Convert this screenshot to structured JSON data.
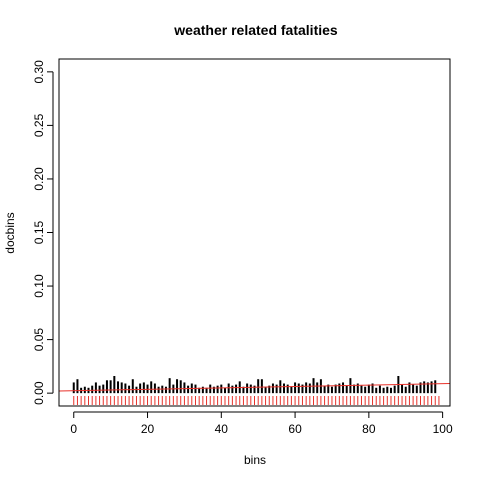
{
  "chart_data": {
    "type": "bar",
    "title": "weather related fatalities",
    "xlabel": "bins",
    "ylabel": "docbins",
    "xlim": [
      -4,
      102
    ],
    "ylim": [
      -0.012,
      0.312
    ],
    "xticks": [
      0,
      20,
      40,
      60,
      80,
      100
    ],
    "yticks": [
      0.0,
      0.05,
      0.1,
      0.15,
      0.2,
      0.25,
      0.3
    ],
    "xtick_labels": [
      "0",
      "20",
      "40",
      "60",
      "80",
      "100"
    ],
    "ytick_labels": [
      "0.00",
      "0.05",
      "0.10",
      "0.15",
      "0.20",
      "0.25",
      "0.30"
    ],
    "x": [
      0,
      1,
      2,
      3,
      4,
      5,
      6,
      7,
      8,
      9,
      10,
      11,
      12,
      13,
      14,
      15,
      16,
      17,
      18,
      19,
      20,
      21,
      22,
      23,
      24,
      25,
      26,
      27,
      28,
      29,
      30,
      31,
      32,
      33,
      34,
      35,
      36,
      37,
      38,
      39,
      40,
      41,
      42,
      43,
      44,
      45,
      46,
      47,
      48,
      49,
      50,
      51,
      52,
      53,
      54,
      55,
      56,
      57,
      58,
      59,
      60,
      61,
      62,
      63,
      64,
      65,
      66,
      67,
      68,
      69,
      70,
      71,
      72,
      73,
      74,
      75,
      76,
      77,
      78,
      79,
      80,
      81,
      82,
      83,
      84,
      85,
      86,
      87,
      88,
      89,
      90,
      91,
      92,
      93,
      94,
      95,
      96,
      97,
      98
    ],
    "values": [
      0.01,
      0.013,
      0.005,
      0.006,
      0.005,
      0.007,
      0.01,
      0.007,
      0.008,
      0.012,
      0.012,
      0.016,
      0.011,
      0.01,
      0.009,
      0.007,
      0.013,
      0.006,
      0.009,
      0.01,
      0.008,
      0.011,
      0.009,
      0.006,
      0.007,
      0.006,
      0.014,
      0.008,
      0.013,
      0.012,
      0.01,
      0.007,
      0.009,
      0.008,
      0.005,
      0.006,
      0.005,
      0.008,
      0.006,
      0.007,
      0.008,
      0.005,
      0.009,
      0.007,
      0.008,
      0.011,
      0.006,
      0.009,
      0.008,
      0.007,
      0.013,
      0.013,
      0.006,
      0.007,
      0.009,
      0.008,
      0.012,
      0.009,
      0.008,
      0.006,
      0.01,
      0.009,
      0.008,
      0.01,
      0.009,
      0.014,
      0.01,
      0.013,
      0.007,
      0.008,
      0.006,
      0.008,
      0.009,
      0.01,
      0.007,
      0.014,
      0.008,
      0.009,
      0.007,
      0.006,
      0.008,
      0.009,
      0.005,
      0.007,
      0.005,
      0.006,
      0.005,
      0.007,
      0.016,
      0.008,
      0.006,
      0.01,
      0.008,
      0.007,
      0.01,
      0.011,
      0.01,
      0.011,
      0.012
    ],
    "rug_x": [
      0,
      1,
      2,
      3,
      4,
      5,
      6,
      7,
      8,
      9,
      10,
      11,
      12,
      13,
      14,
      15,
      16,
      17,
      18,
      19,
      20,
      21,
      22,
      23,
      24,
      25,
      26,
      27,
      28,
      29,
      30,
      31,
      32,
      33,
      34,
      35,
      36,
      37,
      38,
      39,
      40,
      41,
      42,
      43,
      44,
      45,
      46,
      47,
      48,
      49,
      50,
      51,
      52,
      53,
      54,
      55,
      56,
      57,
      58,
      59,
      60,
      61,
      62,
      63,
      64,
      65,
      66,
      67,
      68,
      69,
      70,
      71,
      72,
      73,
      74,
      75,
      76,
      77,
      78,
      79,
      80,
      81,
      82,
      83,
      84,
      85,
      86,
      87,
      88,
      89,
      90,
      91,
      92,
      93,
      94,
      95,
      96,
      97,
      98,
      99
    ],
    "trend_line": {
      "x": [
        -4,
        102
      ],
      "y": [
        0.002,
        0.009
      ]
    },
    "bar_color": "#000000",
    "rug_color": "#e8312a",
    "trend_color": "#e8312a",
    "grid": false,
    "legend": "none"
  }
}
